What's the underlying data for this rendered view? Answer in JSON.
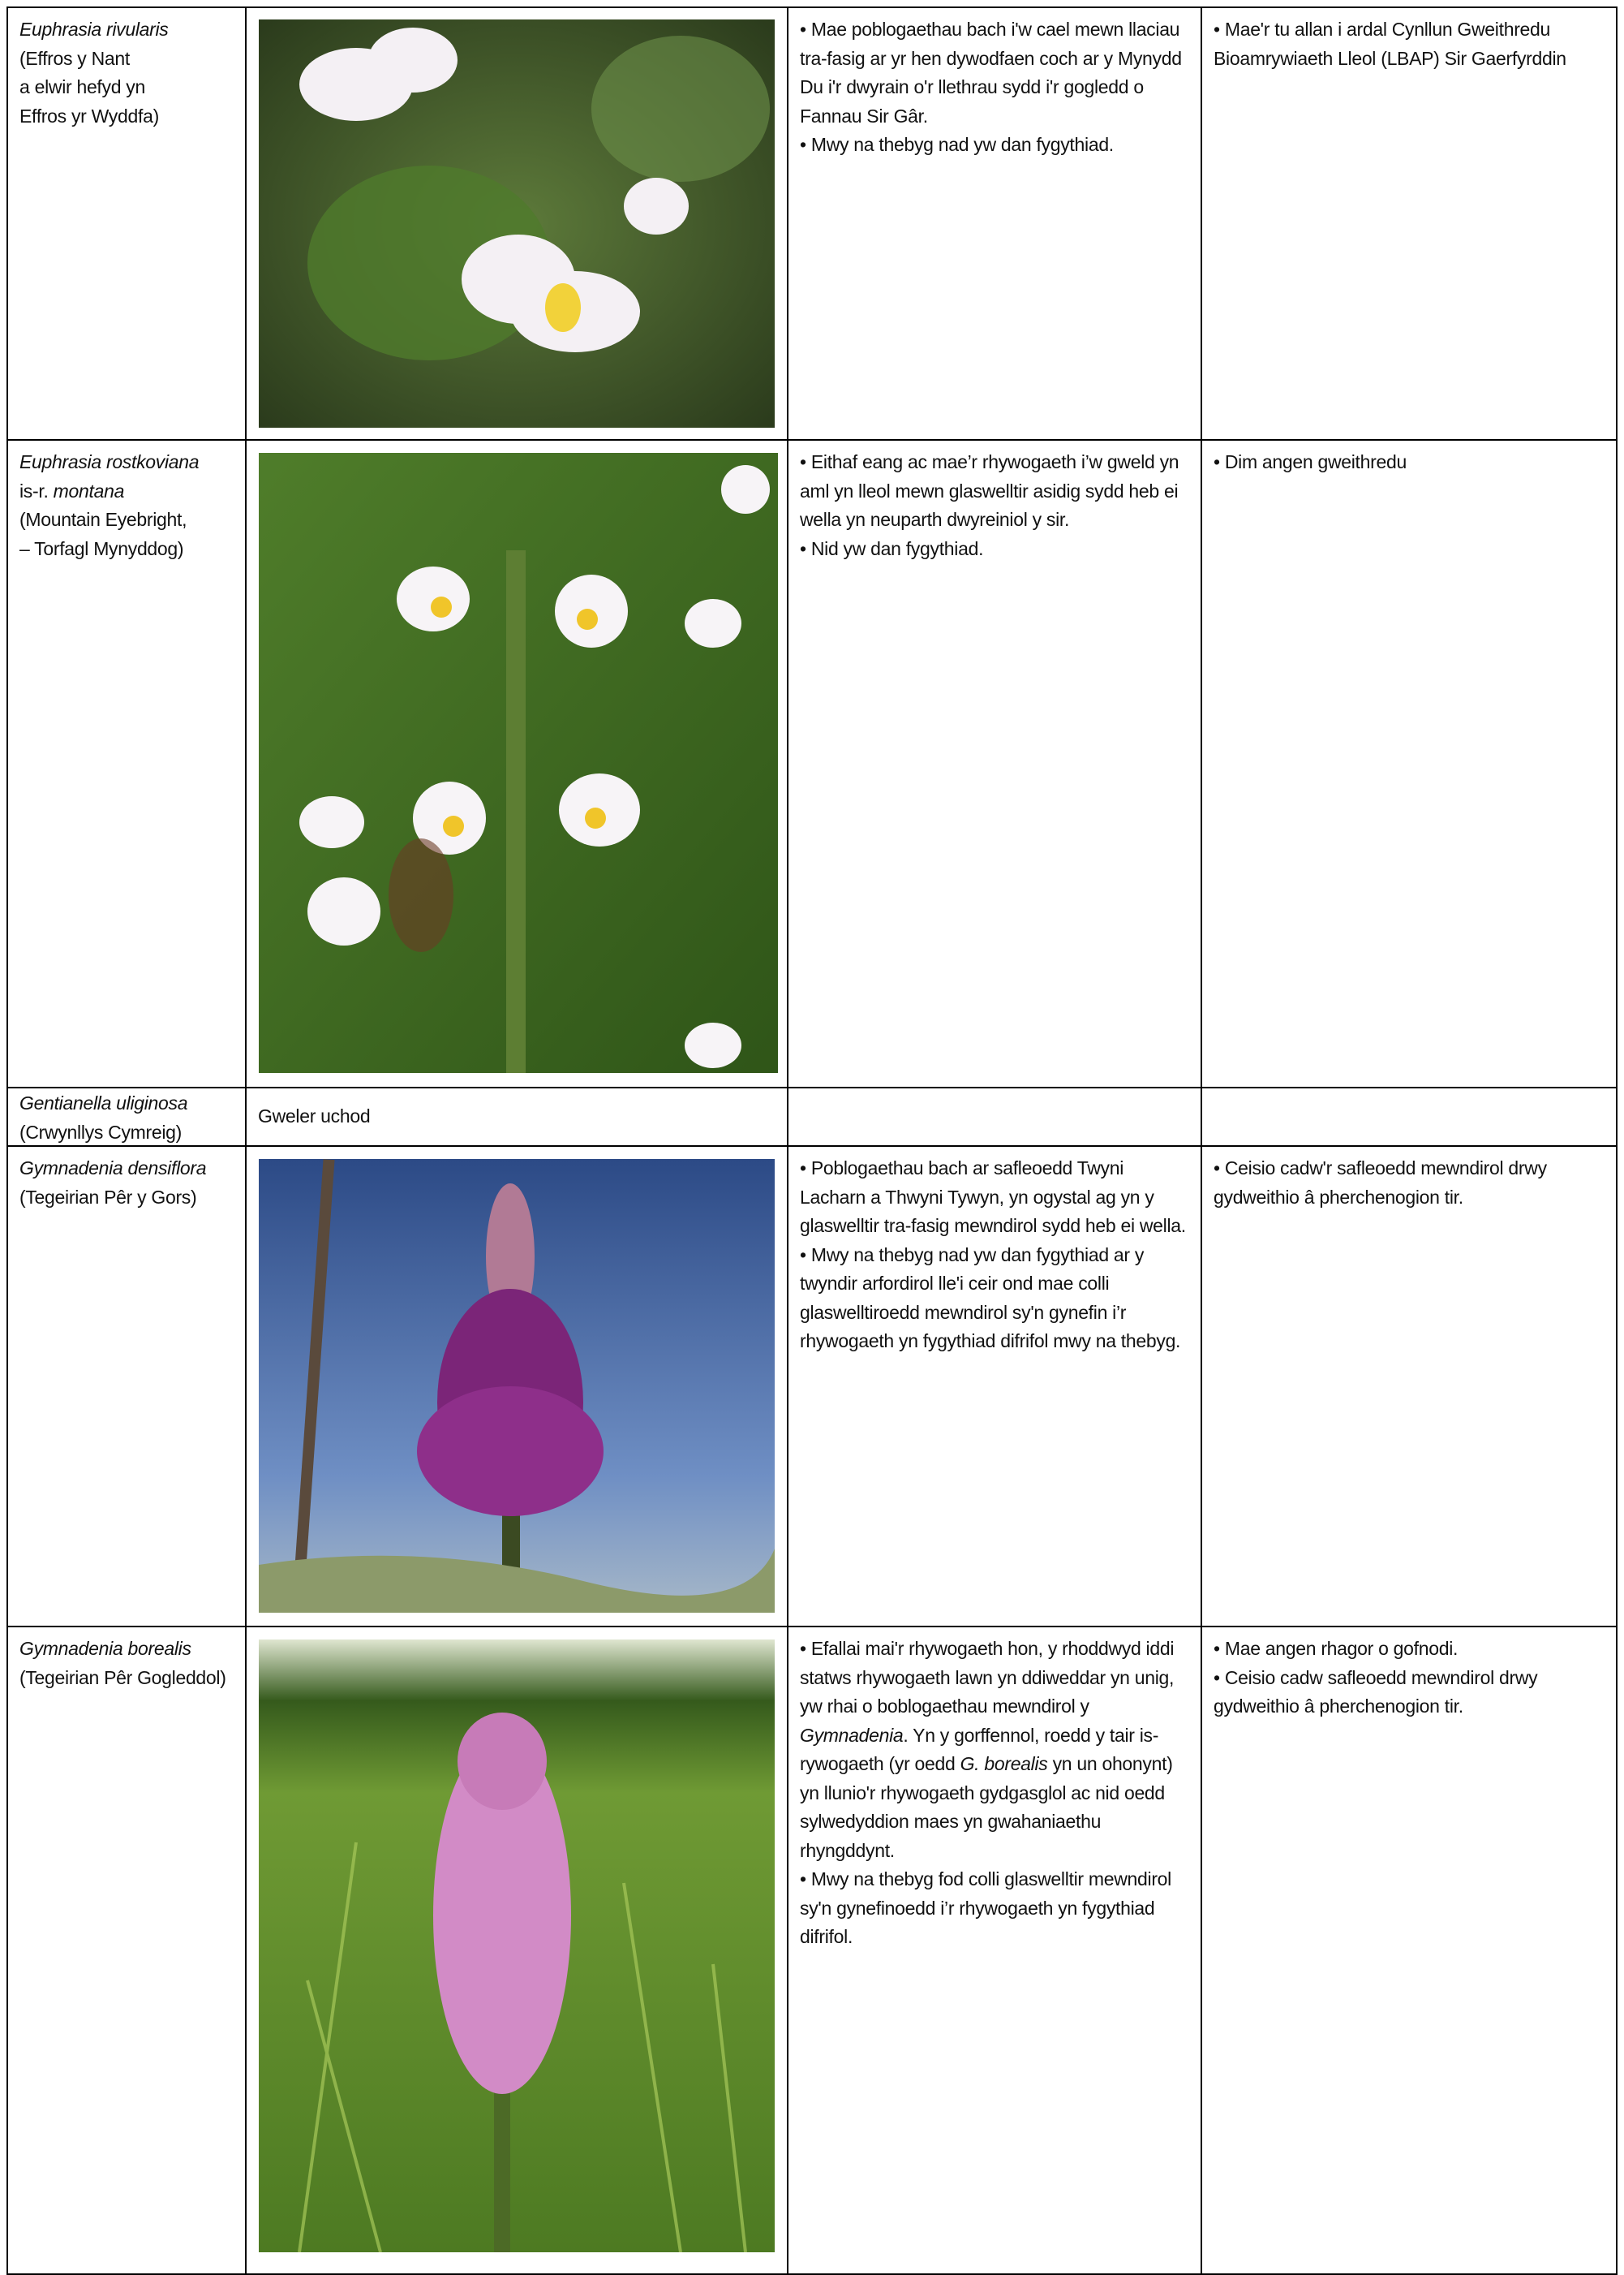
{
  "rows": [
    {
      "name": [
        "Euphrasia rivularis",
        "(Effros y Nant",
        "a elwir hefyd yn",
        "Effros yr Wyddfa)"
      ],
      "status": [
        "• Mae poblogaethau bach i'w cael mewn llaciau tra-fasig ar yr hen dywodfaen coch ar y Mynydd Du i'r dwyrain o'r llethrau sydd i'r gogledd o Fannau Sir Gâr.",
        "• Mwy na thebyg nad yw dan fygythiad."
      ],
      "action": [
        "• Mae'r tu allan i ardal Cynllun Gweithredu Bioamrywiaeth Lleol (LBAP) Sir Gaerfyrddin"
      ]
    },
    {
      "name": [
        "Euphrasia rostkoviana",
        "is-r.",
        "montana",
        "(Mountain Eyebright,",
        "– Torfagl Mynyddog)"
      ],
      "status": [
        "• Eithaf eang ac mae’r rhywogaeth i’w gweld yn aml yn lleol mewn glaswelltir asidig sydd heb ei wella yn neuparth dwyreiniol y sir.",
        "• Nid yw dan fygythiad."
      ],
      "action": [
        "• Dim angen gweithredu"
      ]
    },
    {
      "name": [
        "Gentianella uliginosa",
        "(Crwynllys Cymreig)"
      ],
      "note": "Gweler uchod"
    },
    {
      "name": [
        "Gymnadenia densiflora",
        "(Tegeirian Pêr y Gors)"
      ],
      "status": [
        "• Poblogaethau bach ar safleoedd Twyni Lacharn a Thwyni Tywyn, yn ogystal ag yn y glaswelltir tra-fasig mewndirol sydd heb ei wella.",
        "• Mwy na thebyg nad yw dan fygythiad ar y twyndir arfordirol lle'i ceir ond mae colli glaswelltiroedd mewndirol sy'n gynefin i’r rhywogaeth yn fygythiad difrifol mwy na thebyg."
      ],
      "action": [
        "• Ceisio cadw'r safleoedd mewndirol drwy gydweithio â pherchenogion tir."
      ]
    },
    {
      "name": [
        "Gymnadenia borealis",
        "(Tegeirian Pêr Gogleddol)"
      ],
      "status": [
        [
          "• Efallai mai'r rhywogaeth hon, y rhoddwyd iddi statws rhywogaeth lawn yn ddiweddar yn unig, yw rhai o boblogaethau mewndirol y",
          "Gymnadenia",
          ". Yn y gorffennol, roedd y tair is-rywogaeth (yr oedd",
          "G. borealis",
          "yn un ohonynt) yn llunio'r rhywogaeth gydgasglol ac nid oedd sylwedyddion maes yn gwahaniaethu rhyngddynt."
        ],
        "• Mwy na thebyg fod colli glaswelltir mewndirol sy'n gynefinoedd i’r rhywogaeth yn fygythiad difrifol."
      ],
      "action": [
        "• Mae angen rhagor o gofnodi.",
        "• Ceisio cadw safleoedd mewndirol drwy gydweithio â pherchenogion tir."
      ]
    }
  ]
}
